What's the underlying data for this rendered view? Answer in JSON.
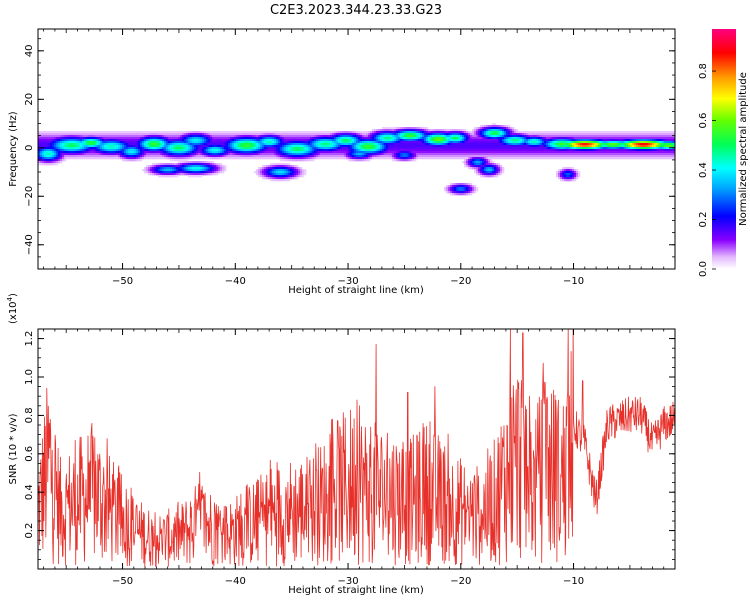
{
  "title": "C2E3.2023.344.23.33.G23",
  "chart_data": [
    {
      "type": "heatmap",
      "xlabel": "Height of straight line (km)",
      "ylabel": "Frequency (Hz)",
      "xlim": [
        -57.5,
        -1
      ],
      "ylim": [
        -50,
        49
      ],
      "x_ticks": [
        -50,
        -40,
        -30,
        -20,
        -10
      ],
      "y_ticks": [
        -40,
        -20,
        0,
        20,
        40
      ],
      "colorbar": {
        "label": "Normalized spectral amplitude",
        "range": [
          0,
          0.97
        ],
        "ticks": [
          0.0,
          0.2,
          0.4,
          0.6,
          0.8
        ]
      },
      "blobs": [
        {
          "x": -56.6,
          "y": -2.5,
          "w": 0.8,
          "h": 2.0,
          "v": 0.45
        },
        {
          "x": -54.5,
          "y": 1.0,
          "w": 1.4,
          "h": 2.2,
          "v": 0.5
        },
        {
          "x": -52.8,
          "y": 2.0,
          "w": 0.9,
          "h": 1.5,
          "v": 0.55
        },
        {
          "x": -51.0,
          "y": 0.5,
          "w": 1.2,
          "h": 2.0,
          "v": 0.45
        },
        {
          "x": -49.2,
          "y": -1.5,
          "w": 0.8,
          "h": 1.8,
          "v": 0.4
        },
        {
          "x": -47.2,
          "y": 1.5,
          "w": 1.0,
          "h": 2.0,
          "v": 0.55
        },
        {
          "x": -45.0,
          "y": 0.0,
          "w": 1.2,
          "h": 2.2,
          "v": 0.5
        },
        {
          "x": -43.5,
          "y": 3.0,
          "w": 1.0,
          "h": 1.8,
          "v": 0.4
        },
        {
          "x": -41.8,
          "y": -1.0,
          "w": 0.9,
          "h": 1.6,
          "v": 0.42
        },
        {
          "x": -39.0,
          "y": 1.0,
          "w": 1.3,
          "h": 2.2,
          "v": 0.55
        },
        {
          "x": -37.0,
          "y": 2.5,
          "w": 0.9,
          "h": 1.7,
          "v": 0.45
        },
        {
          "x": -34.5,
          "y": -0.5,
          "w": 1.3,
          "h": 2.2,
          "v": 0.5
        },
        {
          "x": -32.0,
          "y": 1.5,
          "w": 1.2,
          "h": 2.0,
          "v": 0.48
        },
        {
          "x": -30.2,
          "y": 3.0,
          "w": 1.0,
          "h": 1.8,
          "v": 0.5
        },
        {
          "x": -28.2,
          "y": 0.5,
          "w": 1.2,
          "h": 2.1,
          "v": 0.55
        },
        {
          "x": -26.5,
          "y": 4.0,
          "w": 1.0,
          "h": 1.8,
          "v": 0.48
        },
        {
          "x": -24.5,
          "y": 5.0,
          "w": 1.1,
          "h": 1.6,
          "v": 0.55
        },
        {
          "x": -22.0,
          "y": 3.5,
          "w": 1.0,
          "h": 1.8,
          "v": 0.6
        },
        {
          "x": -20.5,
          "y": 4.0,
          "w": 0.8,
          "h": 1.6,
          "v": 0.5
        },
        {
          "x": -17.0,
          "y": 6.0,
          "w": 0.9,
          "h": 1.6,
          "v": 0.52
        },
        {
          "x": -15.2,
          "y": 3.0,
          "w": 1.0,
          "h": 1.6,
          "v": 0.48
        },
        {
          "x": -13.5,
          "y": 2.5,
          "w": 0.8,
          "h": 1.4,
          "v": 0.45
        },
        {
          "x": -11.0,
          "y": 1.5,
          "w": 1.2,
          "h": 1.6,
          "v": 0.55
        },
        {
          "x": -9.0,
          "y": 1.3,
          "w": 1.5,
          "h": 1.3,
          "v": 0.88
        },
        {
          "x": -6.5,
          "y": 1.3,
          "w": 1.2,
          "h": 1.2,
          "v": 0.6
        },
        {
          "x": -3.8,
          "y": 1.3,
          "w": 1.6,
          "h": 1.3,
          "v": 0.9
        },
        {
          "x": -1.6,
          "y": 1.0,
          "w": 0.9,
          "h": 1.2,
          "v": 0.6
        },
        {
          "x": -43.5,
          "y": -8.5,
          "w": 1.2,
          "h": 1.4,
          "v": 0.42
        },
        {
          "x": -46.0,
          "y": -9.0,
          "w": 1.0,
          "h": 1.3,
          "v": 0.35
        },
        {
          "x": -36.0,
          "y": -10.0,
          "w": 1.0,
          "h": 1.6,
          "v": 0.38
        },
        {
          "x": -29.0,
          "y": -2.5,
          "w": 0.8,
          "h": 1.4,
          "v": 0.34
        },
        {
          "x": -25.0,
          "y": -3.0,
          "w": 0.7,
          "h": 1.3,
          "v": 0.3
        },
        {
          "x": -18.5,
          "y": -6.0,
          "w": 0.6,
          "h": 1.4,
          "v": 0.33
        },
        {
          "x": -17.5,
          "y": -9.0,
          "w": 0.6,
          "h": 1.5,
          "v": 0.35
        },
        {
          "x": -20.0,
          "y": -17.0,
          "w": 0.7,
          "h": 1.3,
          "v": 0.3
        },
        {
          "x": -10.5,
          "y": -11.0,
          "w": 0.5,
          "h": 1.4,
          "v": 0.28
        }
      ]
    },
    {
      "type": "line",
      "xlabel": "Height of straight line (km)",
      "ylabel": "SNR (10 * v/v)",
      "y_scale_note": "(x10",
      "y_scale_exp": "4",
      "xlim": [
        -57.5,
        -1
      ],
      "ylim": [
        0,
        1.25
      ],
      "x_ticks": [
        -50,
        -40,
        -30,
        -20,
        -10
      ],
      "y_ticks": [
        0.2,
        0.4,
        0.6,
        0.8,
        1.0,
        1.2
      ],
      "color": "#e8302a",
      "anchors": [
        [
          -57.5,
          0.3
        ],
        [
          -56.5,
          0.55
        ],
        [
          -55.5,
          0.3
        ],
        [
          -54.0,
          0.35
        ],
        [
          -52.5,
          0.4
        ],
        [
          -51.0,
          0.3
        ],
        [
          -49.0,
          0.2
        ],
        [
          -47.0,
          0.15
        ],
        [
          -45.0,
          0.17
        ],
        [
          -43.0,
          0.25
        ],
        [
          -41.0,
          0.18
        ],
        [
          -39.0,
          0.22
        ],
        [
          -37.0,
          0.28
        ],
        [
          -35.0,
          0.3
        ],
        [
          -33.0,
          0.32
        ],
        [
          -31.0,
          0.4
        ],
        [
          -29.5,
          0.45
        ],
        [
          -28.0,
          0.4
        ],
        [
          -26.0,
          0.38
        ],
        [
          -24.5,
          0.35
        ],
        [
          -23.0,
          0.4
        ],
        [
          -21.5,
          0.35
        ],
        [
          -20.0,
          0.3
        ],
        [
          -18.5,
          0.28
        ],
        [
          -17.0,
          0.35
        ],
        [
          -15.5,
          0.55
        ],
        [
          -14.5,
          0.6
        ],
        [
          -13.5,
          0.4
        ],
        [
          -12.5,
          0.55
        ],
        [
          -11.0,
          0.45
        ],
        [
          -10.0,
          0.75
        ],
        [
          -9.0,
          0.65
        ],
        [
          -8.0,
          0.35
        ],
        [
          -7.0,
          0.75
        ],
        [
          -5.0,
          0.8
        ],
        [
          -4.0,
          0.8
        ],
        [
          -3.0,
          0.65
        ],
        [
          -2.0,
          0.75
        ],
        [
          -1.0,
          0.78
        ]
      ]
    }
  ]
}
